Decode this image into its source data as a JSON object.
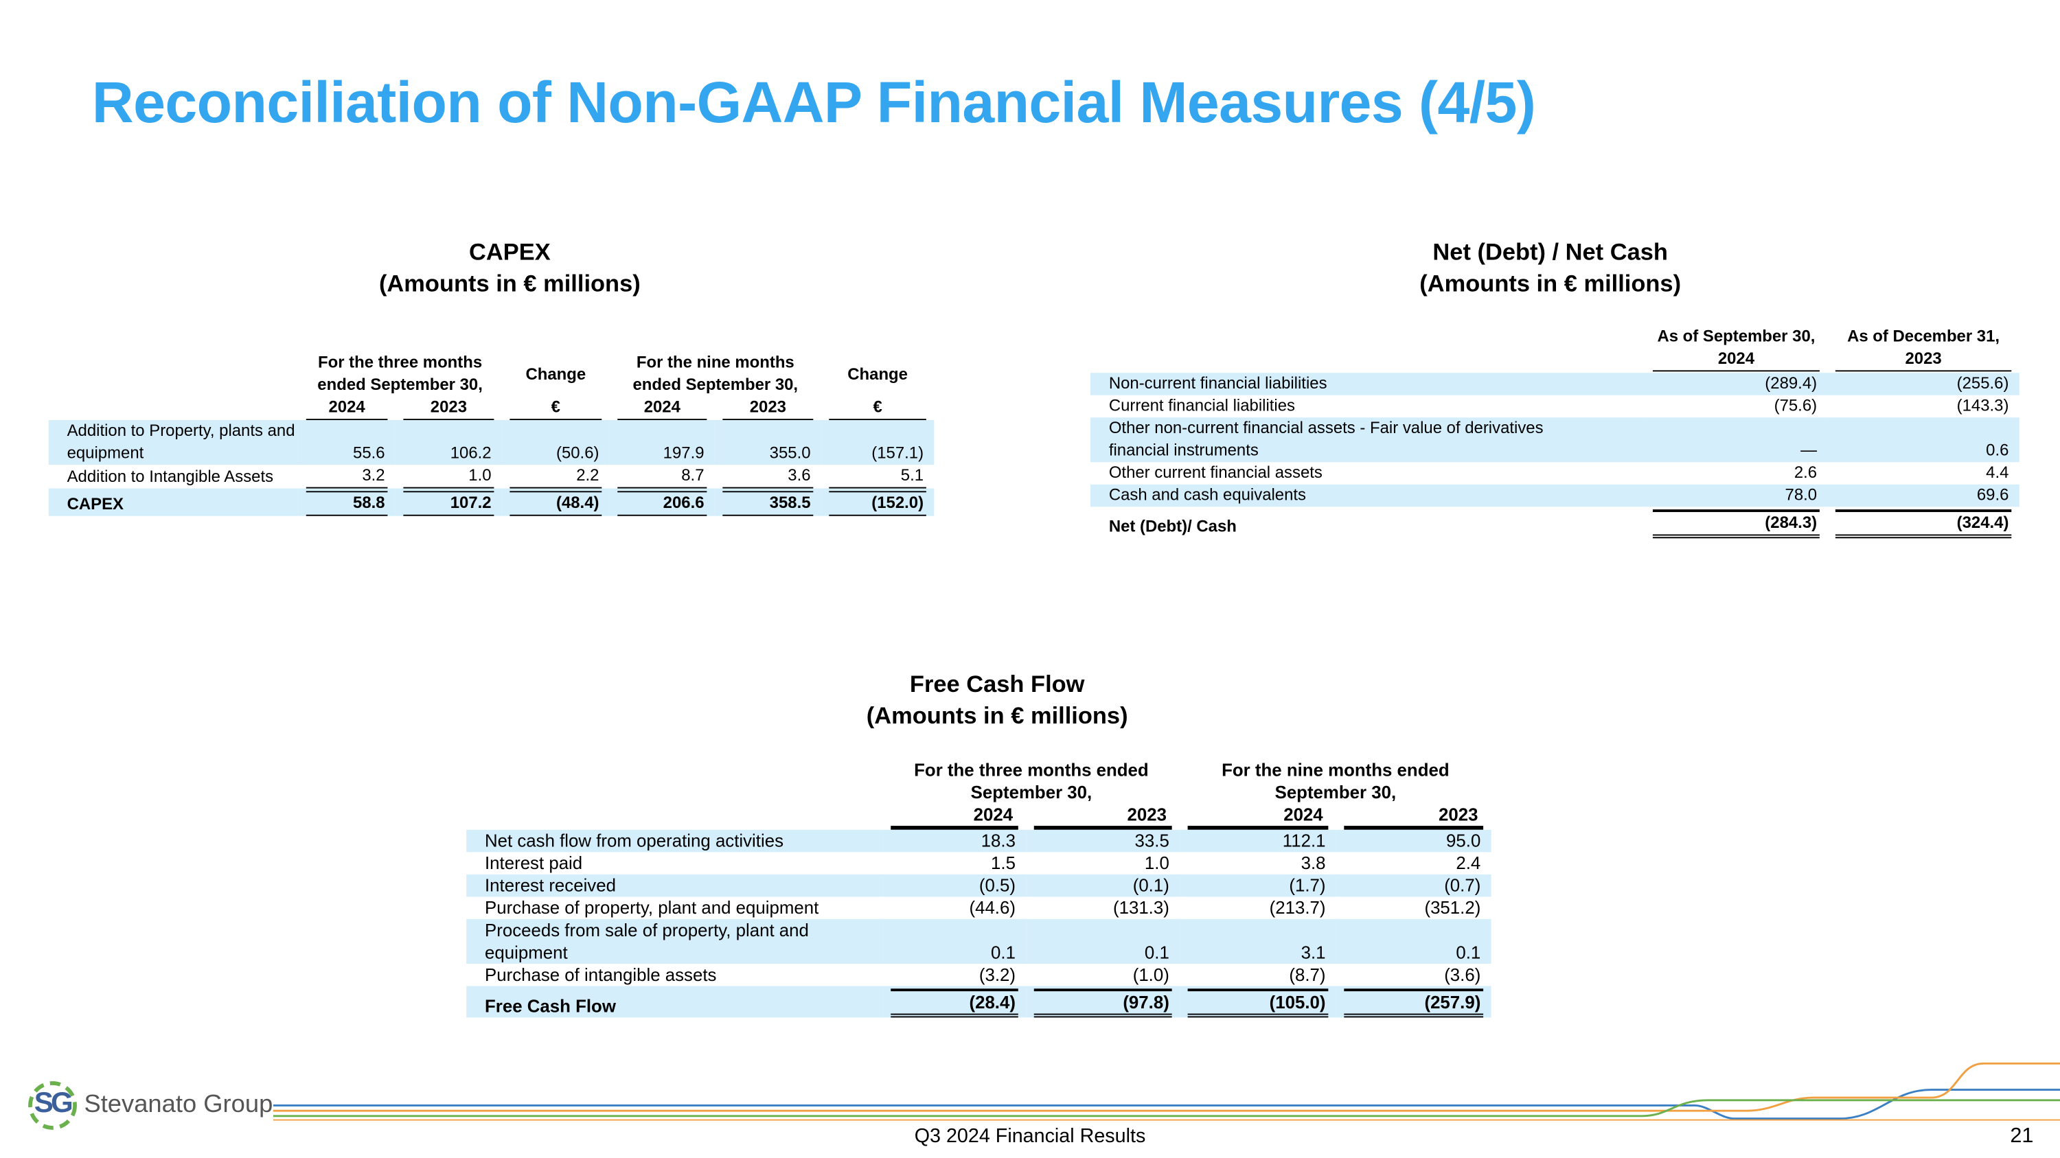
{
  "title": "Reconciliation of Non-GAAP Financial Measures (4/5)",
  "capex": {
    "title": "CAPEX",
    "subtitle": "(Amounts in € millions)",
    "column_groups": [
      "For the three months ended September 30,",
      "Change",
      "For the nine months ended September 30,",
      "Change"
    ],
    "columns": [
      "2024",
      "2023",
      "€",
      "2024",
      "2023",
      "€"
    ],
    "rows": [
      {
        "label": "Addition to Property, plants and equipment",
        "values": [
          "55.6",
          "106.2",
          "(50.6)",
          "197.9",
          "355.0",
          "(157.1)"
        ]
      },
      {
        "label": "Addition to Intangible Assets",
        "values": [
          "3.2",
          "1.0",
          "2.2",
          "8.7",
          "3.6",
          "5.1"
        ]
      },
      {
        "label": "CAPEX",
        "values": [
          "58.8",
          "107.2",
          "(48.4)",
          "206.6",
          "358.5",
          "(152.0)"
        ]
      }
    ]
  },
  "net_debt": {
    "title": "Net (Debt) / Net Cash",
    "subtitle": "(Amounts in € millions)",
    "columns": [
      "As of September 30, 2024",
      "As of December 31, 2023"
    ],
    "rows": [
      {
        "label": "Non-current financial liabilities",
        "values": [
          "(289.4)",
          "(255.6)"
        ]
      },
      {
        "label": "Current financial liabilities",
        "values": [
          "(75.6)",
          "(143.3)"
        ]
      },
      {
        "label": "Other non-current financial assets - Fair value of derivatives financial instruments",
        "values": [
          "—",
          "0.6"
        ]
      },
      {
        "label": "Other current financial assets",
        "values": [
          "2.6",
          "4.4"
        ]
      },
      {
        "label": "Cash and cash equivalents",
        "values": [
          "78.0",
          "69.6"
        ]
      },
      {
        "label": "Net (Debt)/ Cash",
        "values": [
          "(284.3)",
          "(324.4)"
        ]
      }
    ]
  },
  "fcf": {
    "title": "Free Cash Flow",
    "subtitle": "(Amounts in € millions)",
    "column_groups": [
      "For the three months ended September 30,",
      "For the nine months ended September 30,"
    ],
    "columns": [
      "2024",
      "2023",
      "2024",
      "2023"
    ],
    "rows": [
      {
        "label": "Net cash flow from operating activities",
        "values": [
          "18.3",
          "33.5",
          "112.1",
          "95.0"
        ]
      },
      {
        "label": "Interest paid",
        "values": [
          "1.5",
          "1.0",
          "3.8",
          "2.4"
        ]
      },
      {
        "label": "Interest received",
        "values": [
          "(0.5)",
          "(0.1)",
          "(1.7)",
          "(0.7)"
        ]
      },
      {
        "label": "Purchase of property, plant and equipment",
        "values": [
          "(44.6)",
          "(131.3)",
          "(213.7)",
          "(351.2)"
        ]
      },
      {
        "label": "Proceeds from sale of property, plant and equipment",
        "values": [
          "0.1",
          "0.1",
          "3.1",
          "0.1"
        ]
      },
      {
        "label": "Purchase of intangible assets",
        "values": [
          "(3.2)",
          "(1.0)",
          "(8.7)",
          "(3.6)"
        ]
      },
      {
        "label": "Free Cash Flow",
        "values": [
          "(28.4)",
          "(97.8)",
          "(105.0)",
          "(257.9)"
        ]
      }
    ]
  },
  "footer": {
    "logo_mark": "SG",
    "logo_text": "Stevanato Group",
    "text": "Q3 2024 Financial Results",
    "page": "21"
  }
}
